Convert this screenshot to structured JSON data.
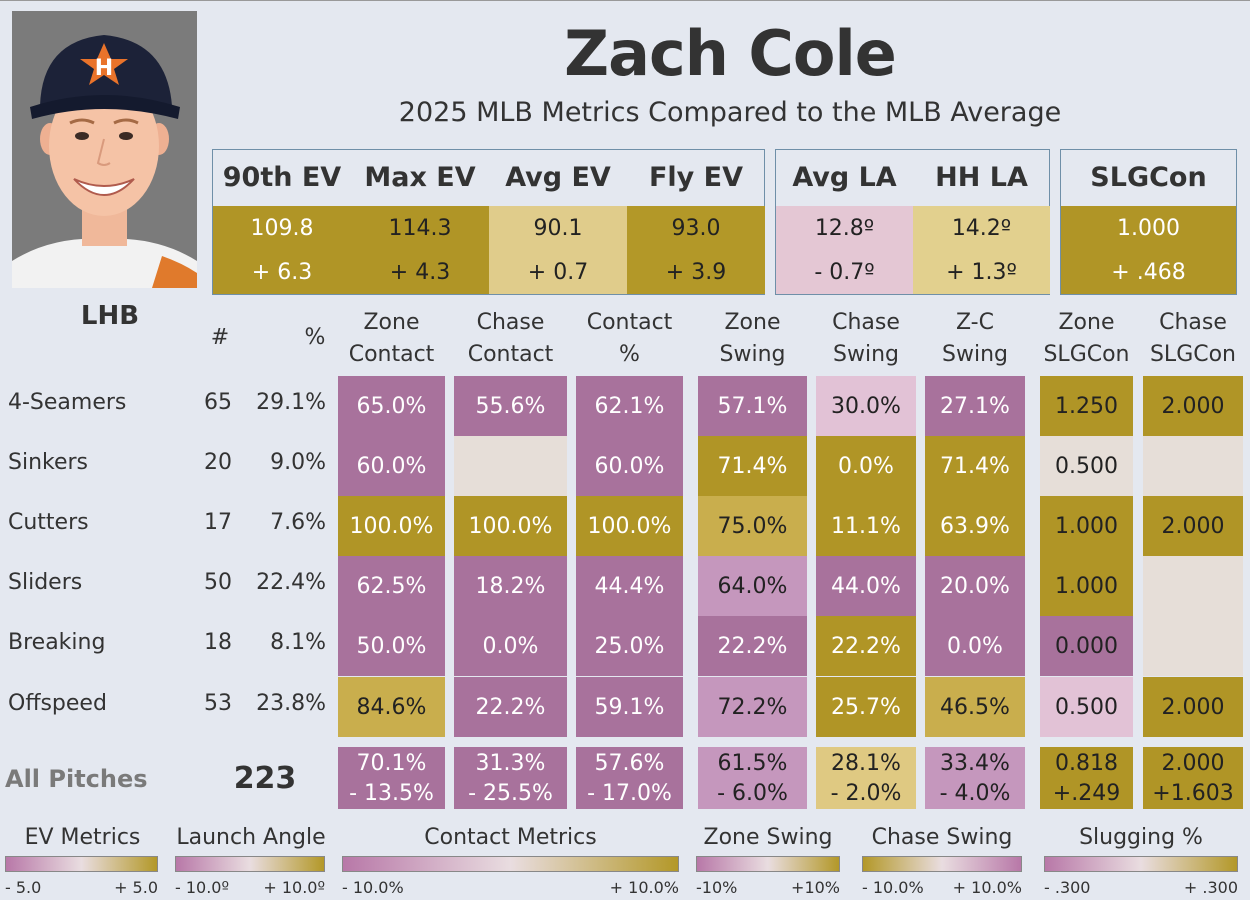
{
  "header": {
    "name": "Zach Cole",
    "subtitle": "2025 MLB Metrics Compared to the MLB Average"
  },
  "colors": {
    "gold_dark": "#b09526",
    "gold_mid": "#c9ae4d",
    "gold_light": "#dfc982",
    "pink_dark": "#a8729c",
    "pink_mid": "#c597bd",
    "pink_light": "#e2c2d6",
    "neutral": "#e6ded8"
  },
  "ev_box": {
    "headers": [
      "90th EV",
      "Max EV",
      "Avg EV",
      "Fly EV"
    ],
    "values": [
      "109.8",
      "114.3",
      "90.1",
      "93.0"
    ],
    "diffs": [
      "+ 6.3",
      "+ 4.3",
      "+ 0.7",
      "+ 3.9"
    ]
  },
  "la_box": {
    "headers": [
      "Avg LA",
      "HH LA"
    ],
    "values": [
      "12.8º",
      "14.2º"
    ],
    "diffs": [
      "- 0.7º",
      "+ 1.3º"
    ]
  },
  "slg_box": {
    "headers": [
      "SLGCon"
    ],
    "values": [
      "1.000"
    ],
    "diffs": [
      "+ .468"
    ]
  },
  "table": {
    "hand": "LHB",
    "count_header": "#",
    "pct_header": "%",
    "columns": [
      [
        "Zone",
        "Contact"
      ],
      [
        "Chase",
        "Contact"
      ],
      [
        "Contact",
        "%"
      ],
      [
        "Zone",
        "Swing"
      ],
      [
        "Chase",
        "Swing"
      ],
      [
        "Z-C",
        "Swing"
      ],
      [
        "Zone",
        "SLGCon"
      ],
      [
        "Chase",
        "SLGCon"
      ]
    ],
    "rows": [
      {
        "label": "4-Seamers",
        "count": "65",
        "pct": "29.1%",
        "cells": [
          "65.0%",
          "55.6%",
          "62.1%",
          "57.1%",
          "30.0%",
          "27.1%",
          "1.250",
          "2.000"
        ]
      },
      {
        "label": "Sinkers",
        "count": "20",
        "pct": "9.0%",
        "cells": [
          "60.0%",
          "",
          "60.0%",
          "71.4%",
          "0.0%",
          "71.4%",
          "0.500",
          ""
        ]
      },
      {
        "label": "Cutters",
        "count": "17",
        "pct": "7.6%",
        "cells": [
          "100.0%",
          "100.0%",
          "100.0%",
          "75.0%",
          "11.1%",
          "63.9%",
          "1.000",
          "2.000"
        ]
      },
      {
        "label": "Sliders",
        "count": "50",
        "pct": "22.4%",
        "cells": [
          "62.5%",
          "18.2%",
          "44.4%",
          "64.0%",
          "44.0%",
          "20.0%",
          "1.000",
          ""
        ]
      },
      {
        "label": "Breaking",
        "count": "18",
        "pct": "8.1%",
        "cells": [
          "50.0%",
          "0.0%",
          "25.0%",
          "22.2%",
          "22.2%",
          "0.0%",
          "0.000",
          ""
        ]
      },
      {
        "label": "Offspeed",
        "count": "53",
        "pct": "23.8%",
        "cells": [
          "84.6%",
          "22.2%",
          "59.1%",
          "72.2%",
          "25.7%",
          "46.5%",
          "0.500",
          "2.000"
        ]
      }
    ],
    "all": {
      "label": "All Pitches",
      "count": "223",
      "values": [
        "70.1%",
        "31.3%",
        "57.6%",
        "61.5%",
        "28.1%",
        "33.4%",
        "0.818",
        "2.000"
      ],
      "diffs": [
        "- 13.5%",
        "- 25.5%",
        "- 17.0%",
        "- 6.0%",
        "- 2.0%",
        "- 4.0%",
        "+.249",
        "+1.603"
      ]
    }
  },
  "legend": [
    {
      "title": "EV Metrics",
      "min": "- 5.0",
      "max": "+ 5.0"
    },
    {
      "title": "Launch Angle",
      "min": "- 10.0º",
      "max": "+ 10.0º"
    },
    {
      "title": "Contact Metrics",
      "min": "- 10.0%",
      "max": "+ 10.0%"
    },
    {
      "title": "Zone Swing",
      "min": "-10%",
      "max": "+10%"
    },
    {
      "title": "Chase Swing",
      "min": "- 10.0%",
      "max": "+ 10.0%"
    },
    {
      "title": "Slugging %",
      "min": "- .300",
      "max": "+ .300"
    }
  ]
}
